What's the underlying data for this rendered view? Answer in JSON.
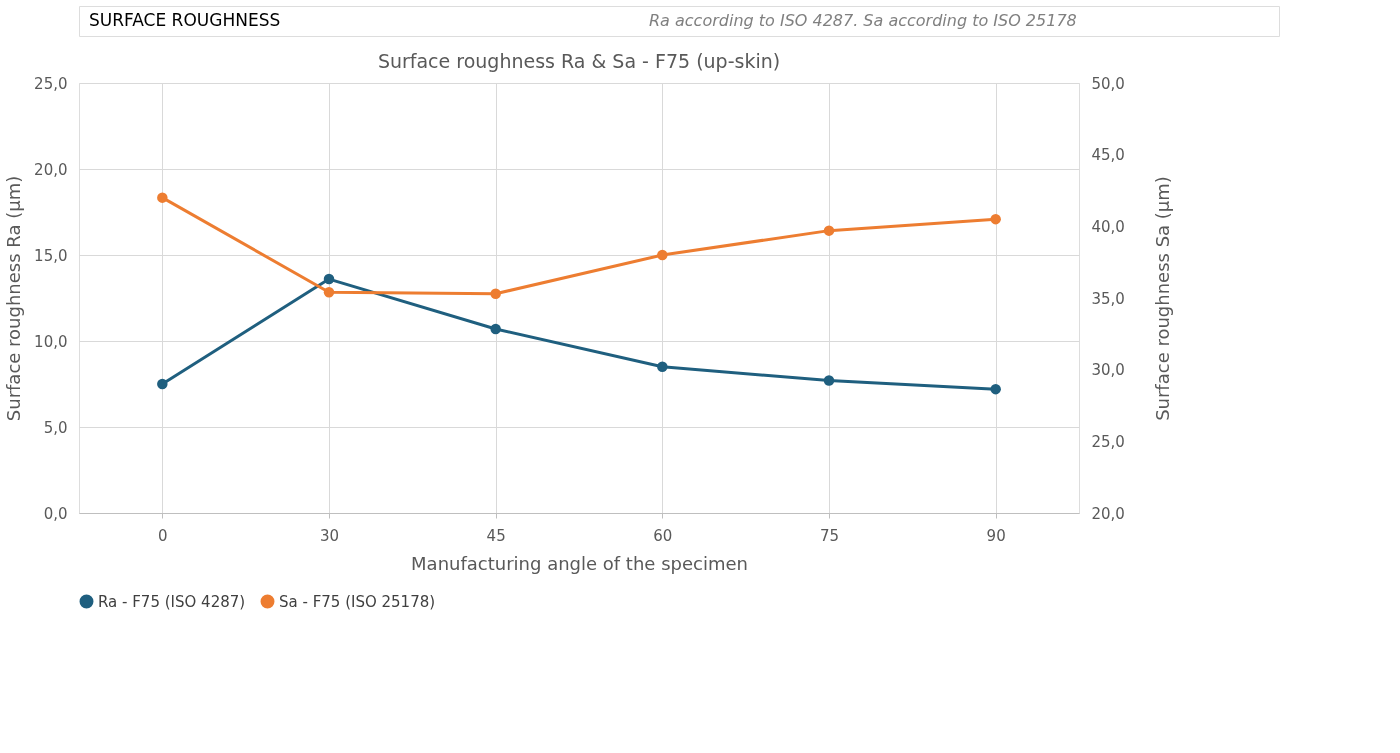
{
  "chart_data": {
    "type": "line",
    "title": "Surface roughness Ra & Sa - F75 (up-skin)",
    "annotations": [
      "SURFACE ROUGHNESS",
      "Ra according to ISO 4287. Sa according to ISO 25178"
    ],
    "xlabel": "Manufacturing angle of the specimen",
    "ylabel": "Surface roughness Ra (µm)",
    "y2label": "Surface roughness Sa (µm)",
    "categories": [
      "0",
      "30",
      "45",
      "60",
      "75",
      "90"
    ],
    "series": [
      {
        "name": "Ra - F75 (ISO 4287)",
        "color": "#1f5f7f",
        "values": [
          7.5,
          13.6,
          10.7,
          8.5,
          7.7,
          7.2
        ]
      },
      {
        "name": "Sa - F75 (ISO 25178)",
        "color": "#ed7d31",
        "axis": "y2",
        "values": [
          42.0,
          35.4,
          35.3,
          38.0,
          39.7,
          40.5
        ]
      }
    ],
    "ylim": [
      0,
      25
    ],
    "yticks": [
      {
        "value": 0,
        "label": "0,0"
      },
      {
        "value": 5,
        "label": "5,0"
      },
      {
        "value": 10,
        "label": "10,0"
      },
      {
        "value": 15,
        "label": "15,0"
      },
      {
        "value": 20,
        "label": "20,0"
      },
      {
        "value": 25,
        "label": "25,0"
      }
    ],
    "y2lim": [
      20,
      50
    ],
    "y2ticks": [
      {
        "value": 20,
        "label": "20,0"
      },
      {
        "value": 25,
        "label": "25,0"
      },
      {
        "value": 30,
        "label": "30,0"
      },
      {
        "value": 35,
        "label": "35,0"
      },
      {
        "value": 40,
        "label": "40,0"
      },
      {
        "value": 45,
        "label": "45,0"
      },
      {
        "value": 50,
        "label": "50,0"
      }
    ],
    "grid": true,
    "legend": "bottom",
    "marker": "circle",
    "line_style": "solid"
  }
}
